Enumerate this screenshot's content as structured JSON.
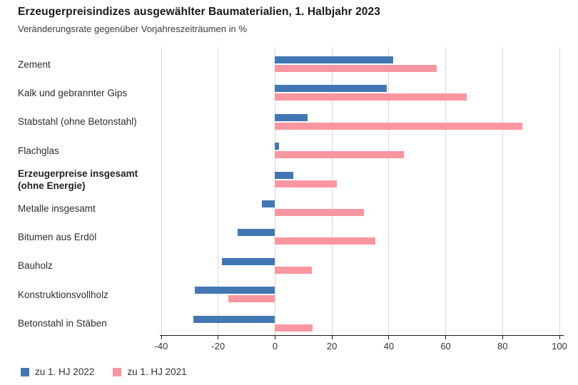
{
  "header": {
    "title": "Erzeugerpreisindizes ausgewählter Baumaterialien, 1. Halbjahr 2023",
    "subtitle": "Veränderungsrate gegenüber Vorjahreszeiträumen in %"
  },
  "chart_data": {
    "type": "bar",
    "orientation": "horizontal",
    "title": "Erzeugerpreisindizes ausgewählter Baumaterialien, 1. Halbjahr 2023",
    "subtitle": "Veränderungsrate gegenüber Vorjahreszeiträumen in %",
    "unit": "%",
    "categories": [
      "Zement",
      "Kalk und gebrannter Gips",
      "Stabstahl (ohne Betonstahl)",
      "Flachglas",
      "Erzeugerpreise insgesamt (ohne Energie)",
      "Metalle insgesamt",
      "Bitumen aus Erdöl",
      "Bauholz",
      "Konstruktionsvollholz",
      "Betonstahl in Stäben"
    ],
    "bold_category_index": 4,
    "series": [
      {
        "name": "zu 1. HJ 2022",
        "color": "#4377b4",
        "values": [
          41.5,
          39.3,
          11.5,
          1.5,
          6.4,
          -4.5,
          -13.2,
          -18.7,
          -28.2,
          -28.7
        ]
      },
      {
        "name": "zu 1. HJ 2021",
        "color": "#fa96a0",
        "values": [
          56.9,
          67.5,
          87.0,
          45.3,
          21.7,
          31.3,
          35.3,
          12.9,
          -16.5,
          13.2
        ]
      }
    ],
    "xlim": [
      -40,
      100
    ],
    "xticks": [
      -40,
      -20,
      0,
      20,
      40,
      60,
      80,
      100
    ],
    "grid": true,
    "legend_position": "bottom-left"
  },
  "colors": {
    "grid": "#dadada",
    "axis": "#1a1a1a",
    "text": "#333333"
  }
}
